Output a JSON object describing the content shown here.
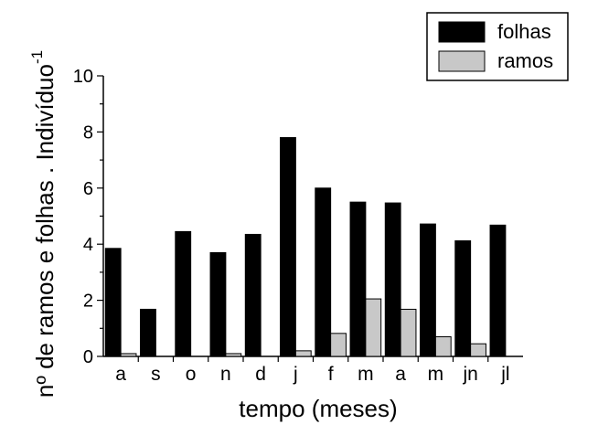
{
  "chart_data": {
    "type": "bar",
    "categories": [
      "a",
      "s",
      "o",
      "n",
      "d",
      "j",
      "f",
      "m",
      "a",
      "m",
      "jn",
      "jl"
    ],
    "series": [
      {
        "name": "folhas",
        "values": [
          3.85,
          1.68,
          4.45,
          3.7,
          4.35,
          7.8,
          6.0,
          5.5,
          5.47,
          4.72,
          4.12,
          4.68
        ],
        "color": "#000000"
      },
      {
        "name": "ramos",
        "values": [
          0.1,
          0.0,
          0.0,
          0.1,
          0.0,
          0.2,
          0.82,
          2.05,
          1.68,
          0.7,
          0.45,
          0.0
        ],
        "color": "#c8c8c8"
      }
    ],
    "title": "",
    "xlabel": "tempo (meses)",
    "ylabel": "nº de ramos e folhas . Indivíduo",
    "ylabel_superscript": "-1",
    "ylim": [
      0,
      10
    ],
    "yticks": [
      "0",
      "2",
      "4",
      "6",
      "8",
      "10"
    ],
    "grid": false,
    "legend_position": "top-right"
  }
}
